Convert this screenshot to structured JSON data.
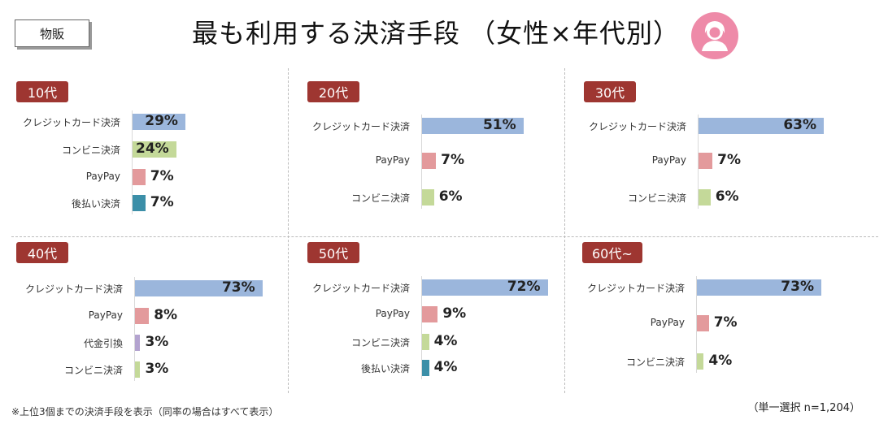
{
  "category_tag": "物販",
  "title": "最も利用する決済手段 （女性×年代別）",
  "footnote": "※上位3個までの決済手段を表示（同率の場合はすべて表示）",
  "sample_note": "（単一選択 n=1,204）",
  "colors": {
    "クレジットカード決済": "#9bb6dc",
    "コンビニ決済": "#c4d999",
    "PayPay": "#e39a9c",
    "後払い決済": "#3c8fa8",
    "代金引換": "#b3a3cf",
    "badge": "#9e3631",
    "avatar": "#ee8aa8"
  },
  "icon": "woman-avatar-icon",
  "chart_data": [
    {
      "type": "bar",
      "orientation": "horizontal",
      "title": "10代",
      "categories": [
        "クレジットカード決済",
        "コンビニ決済",
        "PayPay",
        "後払い決済"
      ],
      "values": [
        29,
        24,
        7,
        7
      ],
      "unit": "%",
      "xlim": [
        0,
        100
      ]
    },
    {
      "type": "bar",
      "orientation": "horizontal",
      "title": "20代",
      "categories": [
        "クレジットカード決済",
        "PayPay",
        "コンビニ決済"
      ],
      "values": [
        51,
        7,
        6
      ],
      "unit": "%",
      "xlim": [
        0,
        100
      ]
    },
    {
      "type": "bar",
      "orientation": "horizontal",
      "title": "30代",
      "categories": [
        "クレジットカード決済",
        "PayPay",
        "コンビニ決済"
      ],
      "values": [
        63,
        7,
        6
      ],
      "unit": "%",
      "xlim": [
        0,
        100
      ]
    },
    {
      "type": "bar",
      "orientation": "horizontal",
      "title": "40代",
      "categories": [
        "クレジットカード決済",
        "PayPay",
        "代金引換",
        "コンビニ決済"
      ],
      "values": [
        73,
        8,
        3,
        3
      ],
      "unit": "%",
      "xlim": [
        0,
        100
      ]
    },
    {
      "type": "bar",
      "orientation": "horizontal",
      "title": "50代",
      "categories": [
        "クレジットカード決済",
        "PayPay",
        "コンビニ決済",
        "後払い決済"
      ],
      "values": [
        72,
        9,
        4,
        4
      ],
      "unit": "%",
      "xlim": [
        0,
        100
      ]
    },
    {
      "type": "bar",
      "orientation": "horizontal",
      "title": "60代~",
      "categories": [
        "クレジットカード決済",
        "PayPay",
        "コンビニ決済"
      ],
      "values": [
        73,
        7,
        4
      ],
      "unit": "%",
      "xlim": [
        0,
        100
      ]
    }
  ]
}
